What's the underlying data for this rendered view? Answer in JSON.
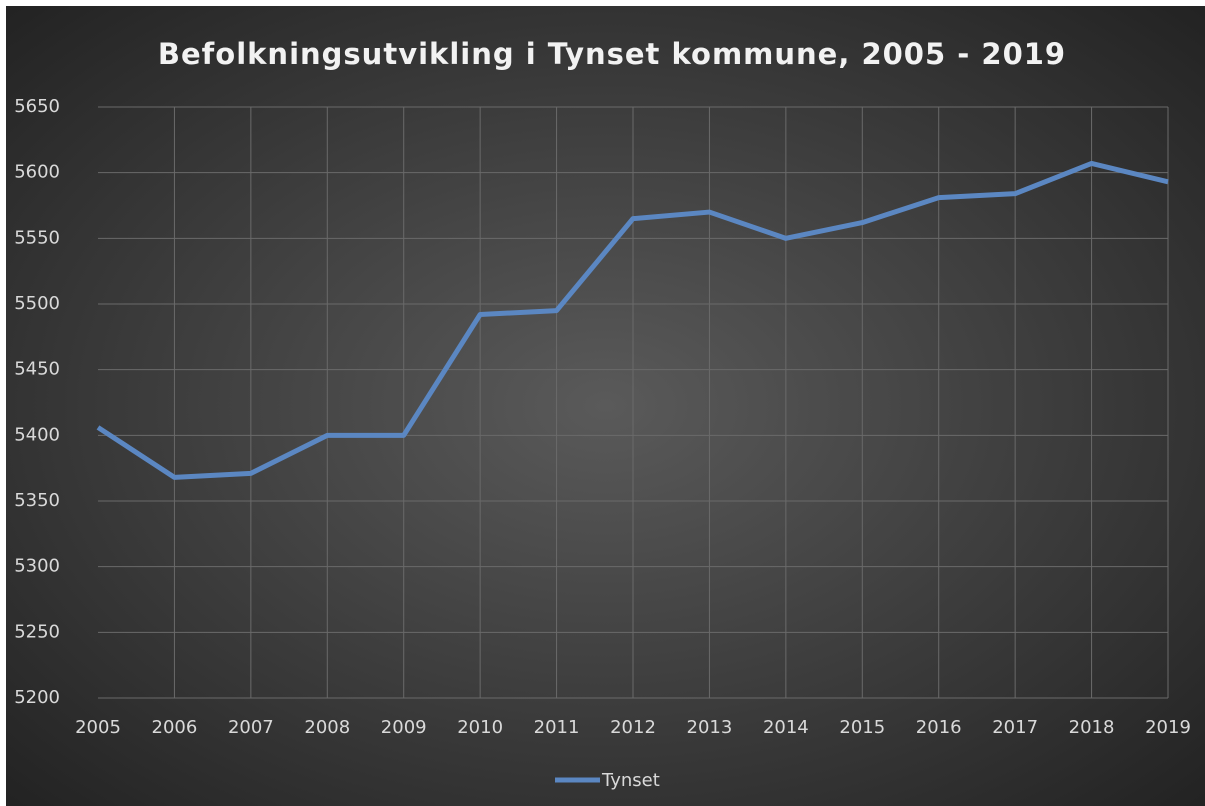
{
  "chart_data": {
    "type": "line",
    "title": "Befolkningsutvikling i Tynset kommune, 2005 - 2019",
    "categories": [
      "2005",
      "2006",
      "2007",
      "2008",
      "2009",
      "2010",
      "2011",
      "2012",
      "2013",
      "2014",
      "2015",
      "2016",
      "2017",
      "2018",
      "2019"
    ],
    "series": [
      {
        "name": "Tynset",
        "color": "#5b87c2",
        "values": [
          5406,
          5368,
          5371,
          5400,
          5400,
          5492,
          5495,
          5565,
          5570,
          5550,
          5562,
          5581,
          5584,
          5607,
          5593
        ]
      }
    ],
    "ylim": [
      5200,
      5650
    ],
    "yticks": [
      5200,
      5250,
      5300,
      5350,
      5400,
      5450,
      5500,
      5550,
      5600,
      5650
    ],
    "grid": true,
    "legend": "bottom"
  }
}
